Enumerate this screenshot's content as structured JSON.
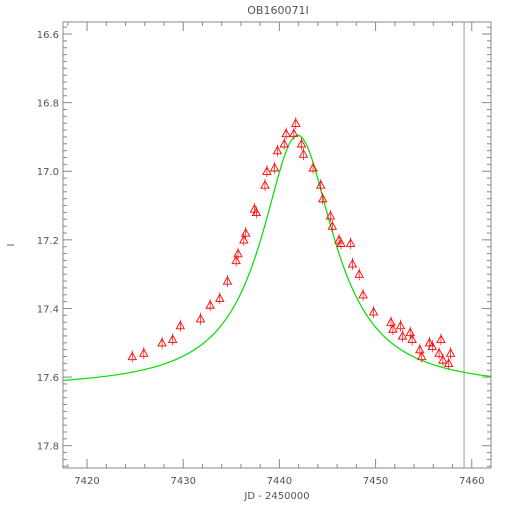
{
  "chart_data": {
    "type": "scatter",
    "title": "OB160071I",
    "xlabel": "JD - 2450000",
    "ylabel": "I",
    "xlim": [
      7417.5,
      7462.0
    ],
    "ylim": [
      17.865,
      16.565
    ],
    "y_inverted": true,
    "grid": false,
    "legend": "none",
    "x_ticks": [
      7420,
      7430,
      7440,
      7450,
      7460
    ],
    "x_tick_labels": [
      "7420",
      "7430",
      "7440",
      "7450",
      "7460"
    ],
    "y_ticks": [
      16.6,
      16.8,
      17.0,
      17.2,
      17.4,
      17.6,
      17.8
    ],
    "y_tick_labels": [
      "16.6",
      "16.8",
      "17.0",
      "17.2",
      "17.4",
      "17.6",
      "17.8"
    ],
    "vertical_line_x": 7459.2,
    "series": [
      {
        "kind": "observations",
        "marker": "triangle",
        "color": "#ff0000",
        "points": [
          [
            7424.7,
            17.54
          ],
          [
            7425.9,
            17.53
          ],
          [
            7427.8,
            17.5
          ],
          [
            7428.9,
            17.49
          ],
          [
            7429.7,
            17.45
          ],
          [
            7431.8,
            17.43
          ],
          [
            7432.8,
            17.39
          ],
          [
            7433.8,
            17.37
          ],
          [
            7434.6,
            17.32
          ],
          [
            7435.5,
            17.26
          ],
          [
            7435.7,
            17.24
          ],
          [
            7436.3,
            17.2
          ],
          [
            7436.5,
            17.18
          ],
          [
            7437.4,
            17.11
          ],
          [
            7437.6,
            17.12
          ],
          [
            7438.5,
            17.04
          ],
          [
            7438.7,
            17.0
          ],
          [
            7439.5,
            16.99
          ],
          [
            7439.8,
            16.94
          ],
          [
            7440.5,
            16.92
          ],
          [
            7440.7,
            16.89
          ],
          [
            7441.5,
            16.89
          ],
          [
            7441.7,
            16.86
          ],
          [
            7442.3,
            16.92
          ],
          [
            7442.5,
            16.95
          ],
          [
            7443.5,
            16.99
          ],
          [
            7444.3,
            17.04
          ],
          [
            7444.5,
            17.08
          ],
          [
            7445.3,
            17.13
          ],
          [
            7445.5,
            17.16
          ],
          [
            7446.2,
            17.2
          ],
          [
            7446.4,
            17.21
          ],
          [
            7447.4,
            17.21
          ],
          [
            7447.6,
            17.27
          ],
          [
            7448.3,
            17.3
          ],
          [
            7448.7,
            17.36
          ],
          [
            7449.8,
            17.41
          ],
          [
            7451.6,
            17.44
          ],
          [
            7451.8,
            17.46
          ],
          [
            7452.6,
            17.45
          ],
          [
            7452.8,
            17.48
          ],
          [
            7453.6,
            17.47
          ],
          [
            7453.8,
            17.49
          ],
          [
            7454.6,
            17.52
          ],
          [
            7454.8,
            17.54
          ],
          [
            7455.6,
            17.5
          ],
          [
            7455.9,
            17.51
          ],
          [
            7456.6,
            17.53
          ],
          [
            7456.8,
            17.49
          ],
          [
            7457.0,
            17.55
          ],
          [
            7457.6,
            17.56
          ],
          [
            7457.8,
            17.53
          ]
        ]
      },
      {
        "kind": "model",
        "line": true,
        "color": "#00e000",
        "t0": 7441.9,
        "baseline": 17.635,
        "peak": 16.895,
        "halfwidth": 4.6
      }
    ]
  }
}
